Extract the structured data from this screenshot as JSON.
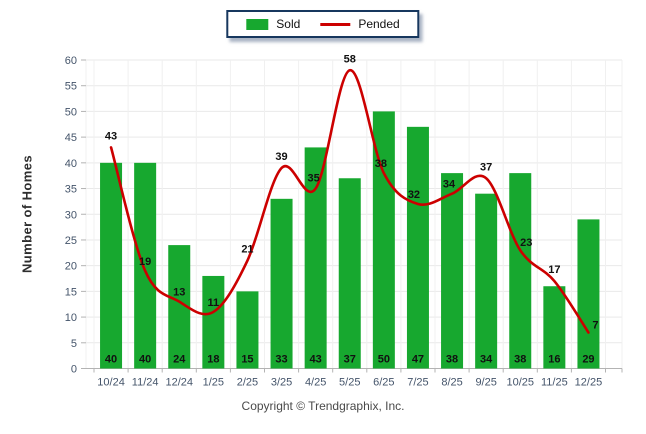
{
  "chart_data": {
    "type": "bar+line",
    "categories": [
      "10/24",
      "11/24",
      "12/24",
      "1/25",
      "2/25",
      "3/25",
      "4/25",
      "5/25",
      "6/25",
      "7/25",
      "8/25",
      "9/25",
      "10/25",
      "11/25",
      "12/25"
    ],
    "series": [
      {
        "name": "Sold",
        "type": "bar",
        "color": "#17a82f",
        "values": [
          40,
          40,
          24,
          18,
          15,
          33,
          43,
          37,
          50,
          47,
          38,
          34,
          38,
          16,
          29
        ]
      },
      {
        "name": "Pended",
        "type": "line",
        "color": "#cc0000",
        "values": [
          43,
          19,
          13,
          11,
          21,
          39,
          35,
          58,
          38,
          32,
          34,
          37,
          23,
          17,
          7
        ]
      }
    ],
    "title": "",
    "xlabel": "",
    "ylabel": "Number of Homes",
    "ylim": [
      0,
      60
    ],
    "ytick_step": 5,
    "grid": true,
    "legend_position": "top-center",
    "value_labels": "bar values at bar base; line values at data points"
  },
  "legend": {
    "sold_swatch_icon": "green-bar-swatch",
    "pended_swatch_icon": "red-line-swatch"
  },
  "footer": {
    "copyright": "Copyright © Trendgraphix, Inc."
  },
  "colors": {
    "bar_green": "#17a82f",
    "line_red": "#cc0000",
    "legend_border": "#17375e",
    "axis_text": "#44546a",
    "value_label": "#111111",
    "grid_line": "#e9e9e9",
    "grid_line_v": "#f0f0f0",
    "axis_line": "#b3b3b3"
  }
}
